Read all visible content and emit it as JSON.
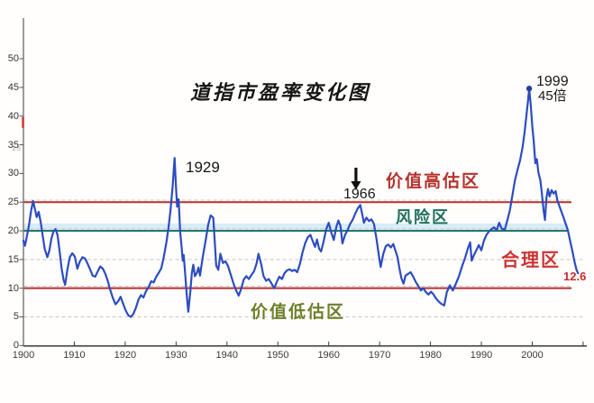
{
  "title": "道指市盈率变化图",
  "colors": {
    "line_blue": "#2c4cc0",
    "marker_navy": "#22409c",
    "red_line": "#b23230",
    "teal_line": "#1e7a68",
    "band_blue": "#d9ecf7",
    "grid_gray": "#c6c6c6",
    "axis_gray": "#7d7d7d",
    "axis_dark": "#3a3a3a",
    "black_text": "#161616",
    "red_text": "#b5322e",
    "bright_red_text": "#cc3333",
    "teal_text": "#1f6f5c",
    "olive_text": "#6e7f2a",
    "end_red": "#cc2a2a",
    "axis_marker_red": "#d23a30"
  },
  "chart_data": {
    "type": "line",
    "title": "道指市盈率变化图",
    "xlabel": "",
    "ylabel": "",
    "grid": "horizontal-dashed",
    "legend": "none",
    "x_axis": {
      "range": [
        1900,
        2011
      ],
      "tick_labels": [
        "1900",
        "1910",
        "1920",
        "1930",
        "1940",
        "1950",
        "1960",
        "1970",
        "1980",
        "1990",
        "2000"
      ],
      "tick_years": [
        1900,
        1910,
        1920,
        1930,
        1940,
        1950,
        1960,
        1970,
        1980,
        1990,
        2000,
        2010
      ]
    },
    "y_axis": {
      "range": [
        0,
        52
      ],
      "tick_values": [
        0,
        5,
        10,
        15,
        20,
        25,
        30,
        35,
        40,
        45,
        50
      ],
      "minor_text": "1.5",
      "red_marker_at": 40
    },
    "reference_lines": [
      {
        "value": 25,
        "style": "solid",
        "color": "#b23230"
      },
      {
        "value": 20,
        "style": "solid",
        "color": "#1e7a68"
      },
      {
        "value": 10,
        "style": "solid",
        "color": "#b23230"
      },
      {
        "value": 15,
        "style": "dashed",
        "color": "#c6c6c6"
      },
      {
        "value": 5,
        "style": "dashed",
        "color": "#c6c6c6"
      }
    ],
    "highlight_band": {
      "from": 20,
      "to": 21.3,
      "color": "#d9ecf7"
    },
    "peak_marker": {
      "year": 1999.4,
      "value": 44.8
    },
    "annotations": {
      "peak1929": {
        "text": "1929"
      },
      "arrow1966": {
        "text": "1966",
        "icon": "down-arrow"
      },
      "peak1999_year": {
        "text": "1999"
      },
      "peak1999_value": {
        "text": "45倍"
      },
      "end_value": {
        "text": "12.6"
      },
      "zone_overvalued": {
        "text": "价值高估区"
      },
      "zone_risk": {
        "text": "风险区"
      },
      "zone_fair": {
        "text": "合理区"
      },
      "zone_undervalued": {
        "text": "价值低估区"
      }
    },
    "series": [
      {
        "name": "道指市盈率",
        "color": "#2c4cc0",
        "points": [
          [
            1900.0,
            18.3
          ],
          [
            1900.3,
            17.4
          ],
          [
            1900.7,
            19.2
          ],
          [
            1901.1,
            21.0
          ],
          [
            1901.5,
            23.5
          ],
          [
            1901.9,
            25.2
          ],
          [
            1902.3,
            23.6
          ],
          [
            1902.6,
            22.4
          ],
          [
            1903.0,
            23.3
          ],
          [
            1903.4,
            21.5
          ],
          [
            1903.8,
            19.0
          ],
          [
            1904.2,
            16.8
          ],
          [
            1904.7,
            15.4
          ],
          [
            1905.1,
            16.6
          ],
          [
            1905.5,
            18.6
          ],
          [
            1905.9,
            19.9
          ],
          [
            1906.3,
            20.3
          ],
          [
            1906.7,
            19.3
          ],
          [
            1907.1,
            16.5
          ],
          [
            1907.5,
            13.5
          ],
          [
            1907.9,
            11.4
          ],
          [
            1908.2,
            10.6
          ],
          [
            1908.6,
            13.0
          ],
          [
            1909.1,
            15.4
          ],
          [
            1909.6,
            16.1
          ],
          [
            1910.1,
            15.5
          ],
          [
            1910.6,
            13.4
          ],
          [
            1911.1,
            14.7
          ],
          [
            1911.6,
            15.4
          ],
          [
            1912.1,
            15.2
          ],
          [
            1912.6,
            14.3
          ],
          [
            1913.1,
            13.3
          ],
          [
            1913.6,
            12.2
          ],
          [
            1914.1,
            12.0
          ],
          [
            1914.6,
            12.9
          ],
          [
            1915.1,
            13.8
          ],
          [
            1915.6,
            13.4
          ],
          [
            1916.1,
            12.5
          ],
          [
            1916.6,
            11.2
          ],
          [
            1917.1,
            9.6
          ],
          [
            1917.6,
            8.2
          ],
          [
            1918.1,
            7.2
          ],
          [
            1918.6,
            7.7
          ],
          [
            1919.1,
            8.5
          ],
          [
            1919.6,
            7.3
          ],
          [
            1920.1,
            6.1
          ],
          [
            1920.6,
            5.3
          ],
          [
            1921.1,
            5.0
          ],
          [
            1921.6,
            5.5
          ],
          [
            1922.1,
            6.6
          ],
          [
            1922.6,
            8.0
          ],
          [
            1923.1,
            8.8
          ],
          [
            1923.6,
            8.4
          ],
          [
            1924.1,
            9.5
          ],
          [
            1924.6,
            10.2
          ],
          [
            1925.1,
            11.2
          ],
          [
            1925.6,
            11.0
          ],
          [
            1926.1,
            12.0
          ],
          [
            1926.6,
            12.7
          ],
          [
            1927.1,
            13.5
          ],
          [
            1927.6,
            15.5
          ],
          [
            1928.1,
            18.0
          ],
          [
            1928.5,
            20.5
          ],
          [
            1928.9,
            23.5
          ],
          [
            1929.3,
            27.5
          ],
          [
            1929.7,
            32.7
          ],
          [
            1930.0,
            27.5
          ],
          [
            1930.2,
            24.2
          ],
          [
            1930.5,
            25.5
          ],
          [
            1930.8,
            19.8
          ],
          [
            1931.1,
            17.0
          ],
          [
            1931.3,
            14.8
          ],
          [
            1931.5,
            15.8
          ],
          [
            1931.8,
            12.4
          ],
          [
            1932.1,
            8.8
          ],
          [
            1932.4,
            5.9
          ],
          [
            1932.8,
            9.5
          ],
          [
            1933.1,
            12.6
          ],
          [
            1933.4,
            14.1
          ],
          [
            1933.7,
            12.1
          ],
          [
            1934.1,
            12.7
          ],
          [
            1934.4,
            13.6
          ],
          [
            1934.7,
            12.2
          ],
          [
            1935.2,
            15.2
          ],
          [
            1935.8,
            18.3
          ],
          [
            1936.3,
            21.0
          ],
          [
            1936.8,
            22.7
          ],
          [
            1937.3,
            22.3
          ],
          [
            1937.9,
            13.9
          ],
          [
            1938.3,
            13.2
          ],
          [
            1938.7,
            16.0
          ],
          [
            1939.2,
            14.4
          ],
          [
            1939.7,
            14.7
          ],
          [
            1940.2,
            13.9
          ],
          [
            1940.8,
            12.2
          ],
          [
            1941.3,
            10.8
          ],
          [
            1941.8,
            9.6
          ],
          [
            1942.3,
            8.7
          ],
          [
            1942.8,
            9.9
          ],
          [
            1943.3,
            11.5
          ],
          [
            1943.8,
            12.1
          ],
          [
            1944.3,
            11.6
          ],
          [
            1944.8,
            12.3
          ],
          [
            1945.3,
            12.9
          ],
          [
            1945.8,
            14.2
          ],
          [
            1946.2,
            16.0
          ],
          [
            1946.7,
            14.3
          ],
          [
            1947.2,
            12.1
          ],
          [
            1947.7,
            11.3
          ],
          [
            1948.2,
            11.6
          ],
          [
            1948.7,
            10.9
          ],
          [
            1949.3,
            10.0
          ],
          [
            1949.8,
            11.1
          ],
          [
            1950.3,
            12.0
          ],
          [
            1950.8,
            11.6
          ],
          [
            1951.3,
            12.6
          ],
          [
            1951.8,
            13.1
          ],
          [
            1952.3,
            13.3
          ],
          [
            1952.8,
            13.0
          ],
          [
            1953.3,
            13.2
          ],
          [
            1953.8,
            12.8
          ],
          [
            1954.3,
            14.1
          ],
          [
            1954.9,
            16.4
          ],
          [
            1955.4,
            17.9
          ],
          [
            1955.9,
            18.9
          ],
          [
            1956.4,
            19.3
          ],
          [
            1956.9,
            18.1
          ],
          [
            1957.3,
            17.2
          ],
          [
            1957.7,
            18.5
          ],
          [
            1958.1,
            16.9
          ],
          [
            1958.5,
            16.4
          ],
          [
            1959.0,
            18.2
          ],
          [
            1959.5,
            20.3
          ],
          [
            1960.0,
            21.4
          ],
          [
            1960.5,
            19.7
          ],
          [
            1961.0,
            18.4
          ],
          [
            1961.5,
            20.7
          ],
          [
            1961.9,
            21.8
          ],
          [
            1962.3,
            20.9
          ],
          [
            1962.7,
            17.8
          ],
          [
            1963.2,
            19.3
          ],
          [
            1963.7,
            20.1
          ],
          [
            1964.2,
            21.2
          ],
          [
            1964.7,
            21.9
          ],
          [
            1965.2,
            23.0
          ],
          [
            1965.7,
            23.9
          ],
          [
            1966.2,
            24.5
          ],
          [
            1966.6,
            22.8
          ],
          [
            1966.9,
            21.4
          ],
          [
            1967.4,
            22.3
          ],
          [
            1967.9,
            21.7
          ],
          [
            1968.4,
            22.0
          ],
          [
            1968.9,
            21.2
          ],
          [
            1969.4,
            18.5
          ],
          [
            1969.9,
            15.4
          ],
          [
            1970.2,
            13.7
          ],
          [
            1970.7,
            15.9
          ],
          [
            1971.2,
            17.3
          ],
          [
            1971.7,
            17.6
          ],
          [
            1972.2,
            17.1
          ],
          [
            1972.7,
            17.7
          ],
          [
            1973.1,
            16.6
          ],
          [
            1973.5,
            15.5
          ],
          [
            1973.9,
            13.4
          ],
          [
            1974.3,
            11.7
          ],
          [
            1974.7,
            10.8
          ],
          [
            1975.1,
            12.2
          ],
          [
            1975.6,
            12.5
          ],
          [
            1976.1,
            12.8
          ],
          [
            1976.6,
            12.0
          ],
          [
            1977.1,
            11.1
          ],
          [
            1977.6,
            10.4
          ],
          [
            1978.1,
            9.6
          ],
          [
            1978.6,
            10.0
          ],
          [
            1979.1,
            9.3
          ],
          [
            1979.6,
            8.9
          ],
          [
            1980.1,
            9.4
          ],
          [
            1980.6,
            8.9
          ],
          [
            1981.1,
            8.2
          ],
          [
            1981.6,
            7.7
          ],
          [
            1982.1,
            7.3
          ],
          [
            1982.7,
            7.0
          ],
          [
            1983.2,
            9.3
          ],
          [
            1983.8,
            10.5
          ],
          [
            1984.4,
            9.6
          ],
          [
            1985.0,
            10.8
          ],
          [
            1985.6,
            12.1
          ],
          [
            1986.2,
            13.8
          ],
          [
            1986.8,
            15.3
          ],
          [
            1987.4,
            17.1
          ],
          [
            1987.8,
            18.0
          ],
          [
            1988.1,
            14.8
          ],
          [
            1988.5,
            15.7
          ],
          [
            1989.0,
            16.6
          ],
          [
            1989.5,
            17.5
          ],
          [
            1990.0,
            16.6
          ],
          [
            1990.5,
            18.3
          ],
          [
            1991.0,
            19.3
          ],
          [
            1991.5,
            19.9
          ],
          [
            1992.0,
            20.3
          ],
          [
            1992.5,
            20.6
          ],
          [
            1993.0,
            20.1
          ],
          [
            1993.5,
            21.4
          ],
          [
            1994.0,
            20.4
          ],
          [
            1994.6,
            20.2
          ],
          [
            1995.1,
            21.8
          ],
          [
            1995.6,
            23.6
          ],
          [
            1996.1,
            26.2
          ],
          [
            1996.6,
            28.8
          ],
          [
            1997.1,
            30.6
          ],
          [
            1997.6,
            32.3
          ],
          [
            1998.1,
            34.6
          ],
          [
            1998.5,
            37.2
          ],
          [
            1998.9,
            40.5
          ],
          [
            1999.2,
            43.0
          ],
          [
            1999.4,
            44.8
          ],
          [
            1999.7,
            42.0
          ],
          [
            2000.0,
            38.3
          ],
          [
            2000.3,
            35.5
          ],
          [
            2000.6,
            31.8
          ],
          [
            2000.9,
            32.5
          ],
          [
            2001.2,
            30.2
          ],
          [
            2001.6,
            28.8
          ],
          [
            2001.9,
            26.5
          ],
          [
            2002.2,
            23.8
          ],
          [
            2002.5,
            21.9
          ],
          [
            2002.8,
            25.8
          ],
          [
            2003.1,
            27.3
          ],
          [
            2003.4,
            26.0
          ],
          [
            2003.8,
            27.1
          ],
          [
            2004.2,
            26.5
          ],
          [
            2004.6,
            26.9
          ],
          [
            2004.9,
            25.4
          ],
          [
            2005.3,
            24.4
          ],
          [
            2005.8,
            23.2
          ],
          [
            2006.2,
            22.2
          ],
          [
            2006.6,
            21.1
          ],
          [
            2007.0,
            20.1
          ],
          [
            2007.4,
            18.4
          ],
          [
            2007.9,
            16.4
          ],
          [
            2008.3,
            14.6
          ],
          [
            2008.7,
            13.2
          ],
          [
            2009.0,
            12.6
          ]
        ]
      }
    ]
  }
}
